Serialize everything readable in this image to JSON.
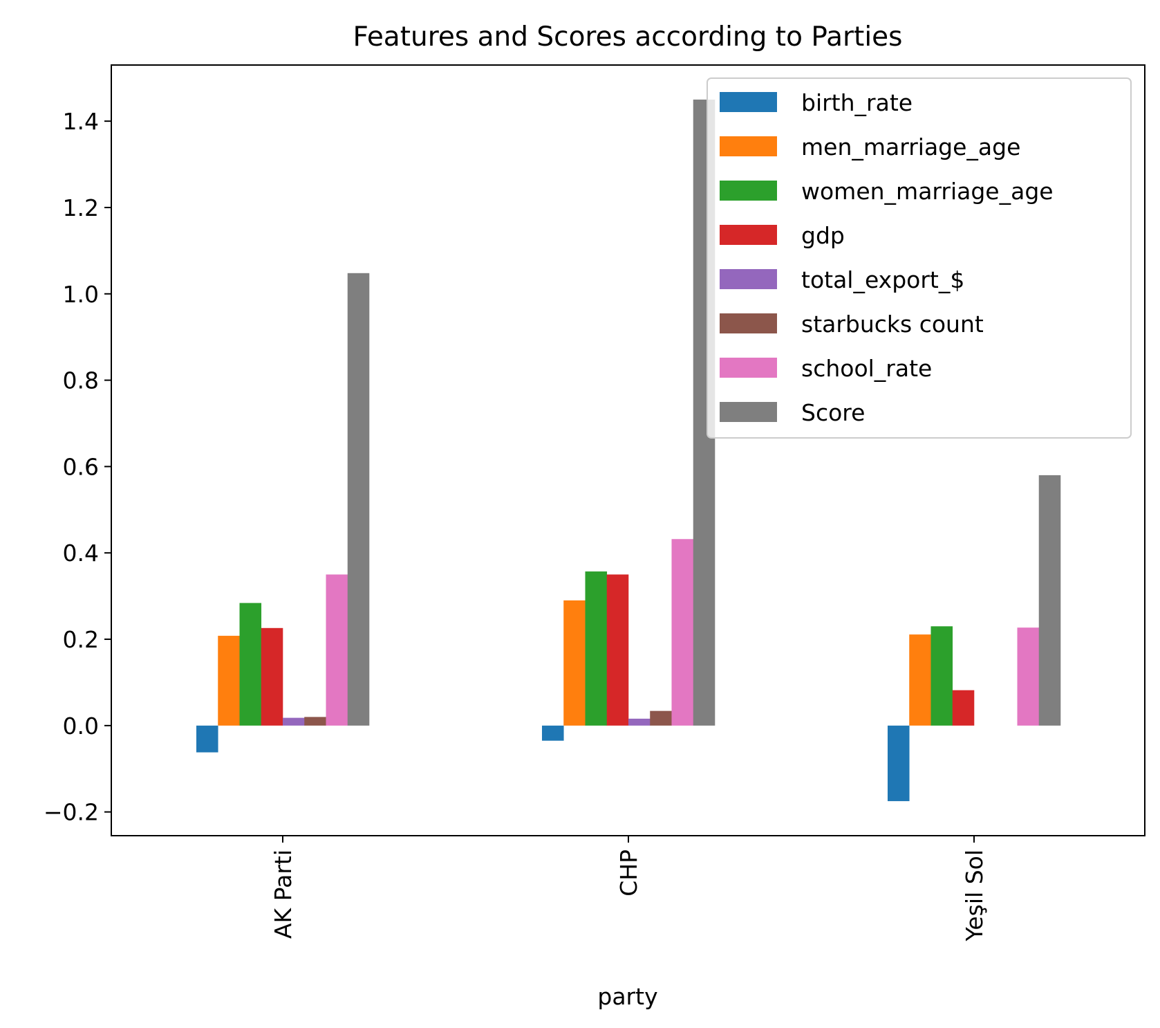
{
  "chart_data": {
    "type": "bar",
    "title": "Features and Scores according to Parties",
    "xlabel": "party",
    "ylabel": "",
    "categories": [
      "AK Parti",
      "CHP",
      "Yeşil Sol"
    ],
    "ylim": [
      -0.255,
      1.53
    ],
    "yticks": [
      -0.2,
      0.0,
      0.2,
      0.4,
      0.6,
      0.8,
      1.0,
      1.2,
      1.4
    ],
    "ytick_labels": [
      "−0.2",
      "0.0",
      "0.2",
      "0.4",
      "0.6",
      "0.8",
      "1.0",
      "1.2",
      "1.4"
    ],
    "grid": false,
    "legend_position": "top-right",
    "series": [
      {
        "name": "birth_rate",
        "color": "#1f77b4",
        "values": [
          -0.062,
          -0.035,
          -0.175
        ]
      },
      {
        "name": "men_marriage_age",
        "color": "#ff7f0e",
        "values": [
          0.208,
          0.29,
          0.211
        ]
      },
      {
        "name": "women_marriage_age",
        "color": "#2ca02c",
        "values": [
          0.284,
          0.357,
          0.23
        ]
      },
      {
        "name": "gdp",
        "color": "#d62728",
        "values": [
          0.226,
          0.35,
          0.082
        ]
      },
      {
        "name": "total_export_$",
        "color": "#9467bd",
        "values": [
          0.018,
          0.016,
          0.0
        ]
      },
      {
        "name": "starbucks count",
        "color": "#8c564b",
        "values": [
          0.02,
          0.034,
          0.0
        ]
      },
      {
        "name": "school_rate",
        "color": "#e377c2",
        "values": [
          0.35,
          0.432,
          0.227
        ]
      },
      {
        "name": "Score",
        "color": "#7f7f7f",
        "values": [
          1.048,
          1.45,
          0.58
        ]
      }
    ]
  }
}
